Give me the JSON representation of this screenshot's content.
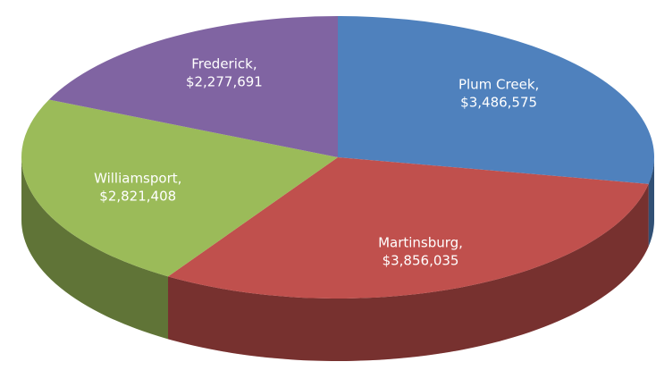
{
  "chart_data": {
    "type": "pie3d",
    "categories": [
      "Plum Creek,",
      "Martinsburg,",
      "Williamsport,",
      "Frederick,"
    ],
    "values": [
      3486575,
      3856035,
      2821408,
      2277691
    ],
    "value_labels": [
      "$3,486,575",
      "$3,856,035",
      "$2,821,408",
      "$2,277,691"
    ],
    "colors": [
      "#4f81bd",
      "#c0504d",
      "#9bbb59",
      "#8064a2"
    ]
  }
}
